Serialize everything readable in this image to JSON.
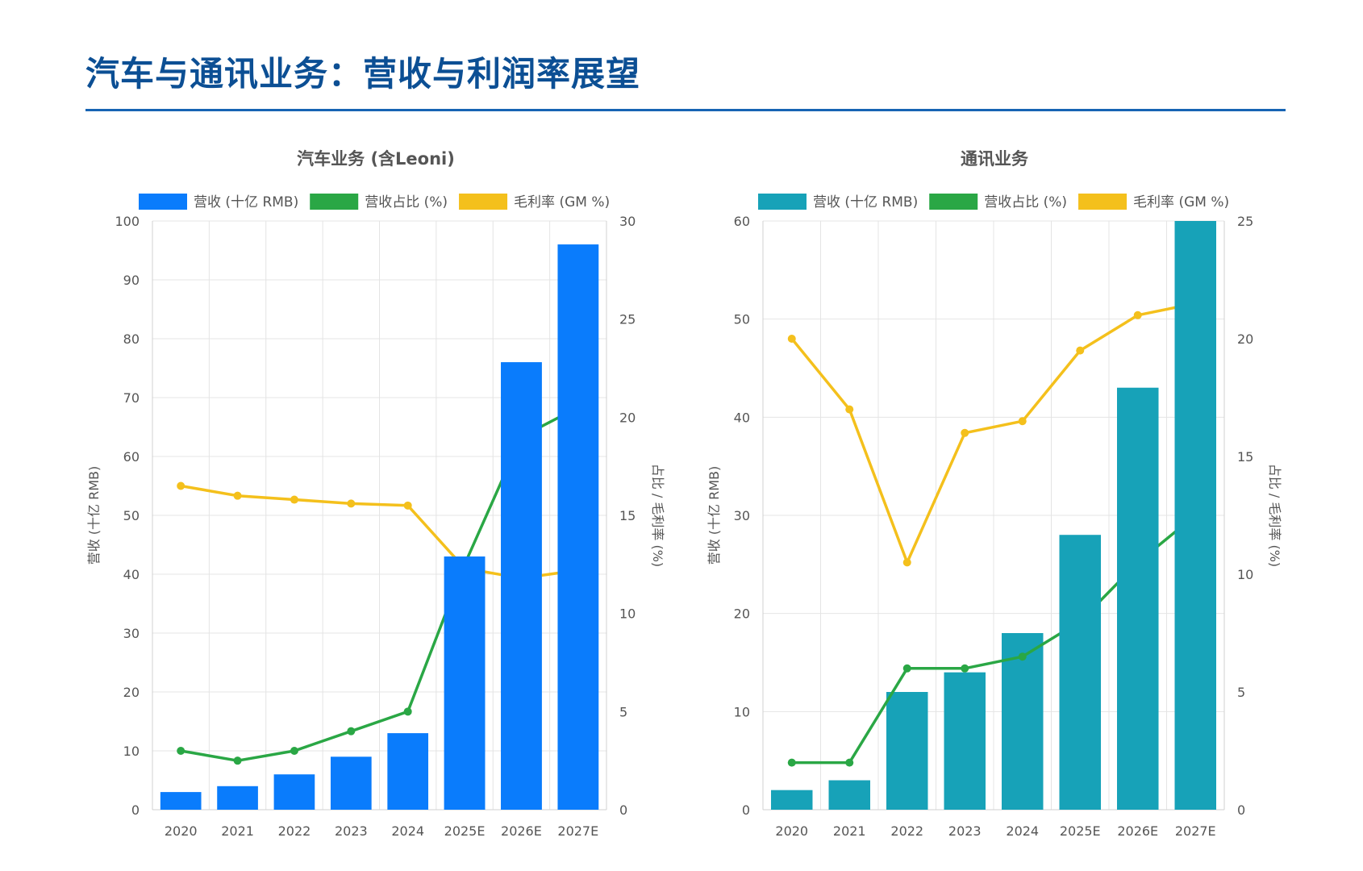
{
  "page": {
    "title": "汽车与通讯业务：营收与利润率展望"
  },
  "colors": {
    "title": "#0c4f94",
    "rule": "#1764b4",
    "auto_bar": "#0a7cfc",
    "comm_bar": "#17a2b8",
    "share_line": "#2aa745",
    "gm_line": "#f4c01c",
    "grid": "#e4e4e4"
  },
  "chart_data": [
    {
      "type": "bar",
      "title": "汽车业务 (含Leoni)",
      "categories": [
        "2020",
        "2021",
        "2022",
        "2023",
        "2024",
        "2025E",
        "2026E",
        "2027E"
      ],
      "legend": [
        "营收 (十亿 RMB)",
        "营收占比 (%)",
        "毛利率 (GM %)"
      ],
      "ylabel": "营收 (十亿 RMB)",
      "y2label": "占比 / 毛利率 (%)",
      "ylim": [
        0,
        100
      ],
      "y2lim": [
        0,
        30
      ],
      "yticks": [
        "0",
        "10",
        "20",
        "30",
        "40",
        "50",
        "60",
        "70",
        "80",
        "90",
        "100"
      ],
      "y2ticks": [
        "0",
        "5",
        "10",
        "15",
        "20",
        "25",
        "30"
      ],
      "series": [
        {
          "name": "营收 (十亿 RMB)",
          "type": "bar",
          "axis": "left",
          "values": [
            3,
            4,
            6,
            9,
            13,
            43,
            76,
            96
          ]
        },
        {
          "name": "营收占比 (%)",
          "type": "line",
          "axis": "right",
          "values": [
            3.0,
            2.5,
            3.0,
            4.0,
            5.0,
            12.5,
            19.0,
            20.5
          ]
        },
        {
          "name": "毛利率 (GM %)",
          "type": "line",
          "axis": "right",
          "values": [
            16.5,
            16.0,
            15.8,
            15.6,
            15.5,
            12.3,
            11.8,
            12.2
          ]
        }
      ],
      "legend_position": "top",
      "grid": true
    },
    {
      "type": "bar",
      "title": "通讯业务",
      "categories": [
        "2020",
        "2021",
        "2022",
        "2023",
        "2024",
        "2025E",
        "2026E",
        "2027E"
      ],
      "legend": [
        "营收 (十亿 RMB)",
        "营收占比 (%)",
        "毛利率 (GM %)"
      ],
      "ylabel": "营收 (十亿 RMB)",
      "y2label": "占比 / 毛利率 (%)",
      "ylim": [
        0,
        60
      ],
      "y2lim": [
        0,
        25
      ],
      "yticks": [
        "0",
        "10",
        "20",
        "30",
        "40",
        "50",
        "60"
      ],
      "y2ticks": [
        "0",
        "5",
        "10",
        "15",
        "20",
        "25"
      ],
      "series": [
        {
          "name": "营收 (十亿 RMB)",
          "type": "bar",
          "axis": "left",
          "values": [
            2,
            3,
            12,
            14,
            18,
            28,
            43,
            60
          ]
        },
        {
          "name": "营收占比 (%)",
          "type": "line",
          "axis": "right",
          "values": [
            2.0,
            2.0,
            6.0,
            6.0,
            6.5,
            8.0,
            10.5,
            12.5
          ]
        },
        {
          "name": "毛利率 (GM %)",
          "type": "line",
          "axis": "right",
          "values": [
            20.0,
            17.0,
            10.5,
            16.0,
            16.5,
            19.5,
            21.0,
            21.5
          ]
        }
      ],
      "legend_position": "top",
      "grid": true
    }
  ]
}
